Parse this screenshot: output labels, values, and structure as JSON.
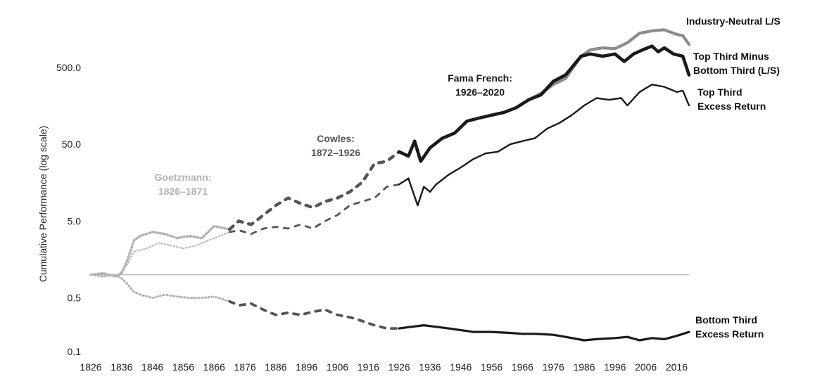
{
  "chart_data": {
    "type": "line",
    "title": "",
    "ylabel": "Cumulative Performance (log scale)",
    "xlabel": "",
    "y_scale": "log",
    "ylim": [
      0.1,
      1500
    ],
    "xlim": [
      1826,
      2020
    ],
    "grid": false,
    "y_ticks": [
      {
        "value": 0.1,
        "label": "0.1"
      },
      {
        "value": 0.5,
        "label": "0.5"
      },
      {
        "value": 5,
        "label": "5.0"
      },
      {
        "value": 50,
        "label": "50.0"
      },
      {
        "value": 500,
        "label": "500.0"
      }
    ],
    "x_ticks": [
      1826,
      1836,
      1846,
      1856,
      1866,
      1876,
      1886,
      1896,
      1906,
      1916,
      1926,
      1936,
      1946,
      1956,
      1966,
      1976,
      1986,
      1996,
      2006,
      2016
    ],
    "reference_line": 1,
    "periods": [
      {
        "label_lines": [
          "Goetzmann:",
          "1826–1871"
        ],
        "start": 1826,
        "end": 1871,
        "color": "#b3b3b3"
      },
      {
        "label_lines": [
          "Cowles:",
          "1872–1926"
        ],
        "start": 1871,
        "end": 1926,
        "color": "#555555"
      },
      {
        "label_lines": [
          "Fama French:",
          "1926–2020"
        ],
        "start": 1926,
        "end": 2020,
        "color": "#1a1a1a"
      }
    ],
    "series": [
      {
        "key": "industry_neutral",
        "label_lines": [
          "Industry-Neutral L/S"
        ],
        "color": "#8c8c8c",
        "x": [
          1968,
          1972,
          1976,
          1980,
          1985,
          1988,
          1992,
          1996,
          2000,
          2004,
          2008,
          2012,
          2016,
          2018,
          2020
        ],
        "y": [
          190,
          230,
          300,
          360,
          700,
          850,
          900,
          880,
          1050,
          1400,
          1500,
          1550,
          1350,
          1300,
          1000
        ]
      },
      {
        "key": "top_minus_bottom",
        "label_lines": [
          "Top Third Minus",
          "Bottom Third (L/S)"
        ],
        "x": [
          1826,
          1830,
          1834,
          1836,
          1838,
          1840,
          1842,
          1846,
          1850,
          1854,
          1858,
          1862,
          1866,
          1871,
          1874,
          1878,
          1882,
          1886,
          1890,
          1894,
          1898,
          1902,
          1906,
          1910,
          1914,
          1918,
          1922,
          1926,
          1929,
          1931,
          1933,
          1936,
          1940,
          1944,
          1948,
          1952,
          1956,
          1960,
          1964,
          1968,
          1972,
          1976,
          1980,
          1985,
          1988,
          1992,
          1996,
          1999,
          2002,
          2005,
          2008,
          2010,
          2012,
          2015,
          2018,
          2020
        ],
        "y": [
          1.0,
          1.05,
          0.95,
          1.05,
          1.6,
          2.8,
          3.2,
          3.6,
          3.4,
          3.0,
          3.2,
          3.0,
          4.3,
          3.9,
          5.0,
          4.5,
          6.0,
          8.0,
          10.0,
          8.5,
          7.5,
          9.0,
          10.0,
          12.0,
          16.0,
          28.0,
          30.0,
          40.0,
          35.0,
          55.0,
          30.0,
          45.0,
          60.0,
          70.0,
          100.0,
          110.0,
          120.0,
          130.0,
          150.0,
          190.0,
          220.0,
          330.0,
          400.0,
          700.0,
          750.0,
          700.0,
          750.0,
          600.0,
          750.0,
          850.0,
          950.0,
          800.0,
          900.0,
          750.0,
          700.0,
          400.0
        ]
      },
      {
        "key": "top_excess",
        "label_lines": [
          "Top Third",
          "Excess Return"
        ],
        "x": [
          1826,
          1830,
          1834,
          1836,
          1838,
          1840,
          1844,
          1848,
          1852,
          1856,
          1860,
          1866,
          1871,
          1874,
          1878,
          1882,
          1886,
          1890,
          1894,
          1898,
          1902,
          1906,
          1910,
          1914,
          1918,
          1922,
          1926,
          1929,
          1932,
          1934,
          1936,
          1938,
          1942,
          1946,
          1950,
          1954,
          1958,
          1962,
          1966,
          1970,
          1974,
          1978,
          1982,
          1986,
          1990,
          1994,
          1998,
          2000,
          2004,
          2008,
          2012,
          2016,
          2018,
          2020
        ],
        "y": [
          1.0,
          1.05,
          0.95,
          1.1,
          1.4,
          2.0,
          2.2,
          2.6,
          2.4,
          2.2,
          2.4,
          3.0,
          3.6,
          3.8,
          3.4,
          4.0,
          4.2,
          4.0,
          4.5,
          4.0,
          5.0,
          6.0,
          8.0,
          9.0,
          10.0,
          14.0,
          15.0,
          18.0,
          8.0,
          14.0,
          12.0,
          15.0,
          20.0,
          25.0,
          32.0,
          38.0,
          40.0,
          50.0,
          55.0,
          60.0,
          80.0,
          95.0,
          120.0,
          160.0,
          200.0,
          190.0,
          200.0,
          160.0,
          240.0,
          300.0,
          280.0,
          240.0,
          250.0,
          160.0
        ]
      },
      {
        "key": "bottom_excess",
        "label_lines": [
          "Bottom Third",
          "Excess Return"
        ],
        "x": [
          1826,
          1830,
          1834,
          1836,
          1838,
          1840,
          1842,
          1846,
          1850,
          1854,
          1858,
          1862,
          1866,
          1871,
          1874,
          1878,
          1882,
          1886,
          1890,
          1894,
          1898,
          1902,
          1906,
          1910,
          1914,
          1918,
          1922,
          1926,
          1930,
          1934,
          1938,
          1942,
          1946,
          1950,
          1956,
          1962,
          1966,
          1970,
          1976,
          1980,
          1986,
          1990,
          1996,
          2000,
          2004,
          2008,
          2012,
          2016,
          2020
        ],
        "y": [
          1.0,
          0.95,
          1.0,
          0.9,
          0.75,
          0.6,
          0.55,
          0.5,
          0.55,
          0.52,
          0.5,
          0.5,
          0.52,
          0.45,
          0.4,
          0.42,
          0.35,
          0.3,
          0.32,
          0.3,
          0.33,
          0.35,
          0.3,
          0.28,
          0.25,
          0.22,
          0.2,
          0.2,
          0.21,
          0.22,
          0.21,
          0.2,
          0.19,
          0.18,
          0.18,
          0.175,
          0.17,
          0.17,
          0.165,
          0.155,
          0.14,
          0.145,
          0.15,
          0.155,
          0.14,
          0.15,
          0.145,
          0.16,
          0.18
        ]
      }
    ]
  }
}
